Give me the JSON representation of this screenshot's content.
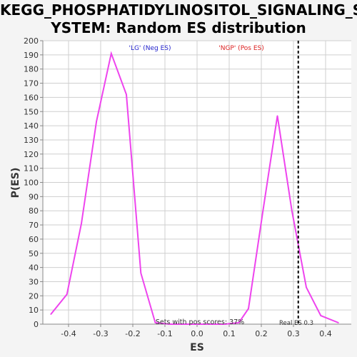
{
  "chart_data": {
    "type": "line",
    "title_lines": [
      "KEGG_PHOSPHATIDYLINOSITOL_SIGNALING_S",
      "YSTEM: Random ES distribution"
    ],
    "xlabel": "ES",
    "ylabel": "P(ES)",
    "xlim": [
      -0.48,
      0.48
    ],
    "ylim": [
      0,
      200
    ],
    "xticks": [
      -0.4,
      -0.3,
      -0.2,
      -0.1,
      0.0,
      0.1,
      0.2,
      0.3,
      0.4
    ],
    "xtick_labels": [
      "-0.4",
      "-0.3",
      "-0.2",
      "-0.1",
      "0.0",
      "0.1",
      "0.2",
      "0.3",
      "0.4"
    ],
    "yticks": [
      0,
      10,
      20,
      30,
      40,
      50,
      60,
      70,
      80,
      90,
      100,
      110,
      120,
      130,
      140,
      150,
      160,
      170,
      180,
      190,
      200
    ],
    "grid": true,
    "series": [
      {
        "color": "#ee44ee",
        "x": [
          -0.455,
          -0.405,
          -0.36,
          -0.313,
          -0.267,
          -0.22,
          -0.175,
          -0.13,
          -0.085,
          -0.04,
          0.0,
          0.04,
          0.085,
          0.13,
          0.16,
          0.205,
          0.25,
          0.295,
          0.34,
          0.385,
          0.44
        ],
        "y": [
          7,
          21,
          71,
          143,
          191,
          162,
          36,
          1,
          0,
          0,
          0,
          0,
          0,
          1,
          11,
          80,
          147,
          80,
          26,
          6,
          1
        ]
      }
    ],
    "real_es": {
      "value": 0.315,
      "label": "Real ES 0.3"
    },
    "legend_neg": {
      "text": "'LG' (Neg ES)",
      "color": "#2222cc"
    },
    "legend_pos": {
      "text": "'NGP' (Pos ES)",
      "color": "#dd2222"
    },
    "annotation": "Sets with pos scores: 37%"
  }
}
